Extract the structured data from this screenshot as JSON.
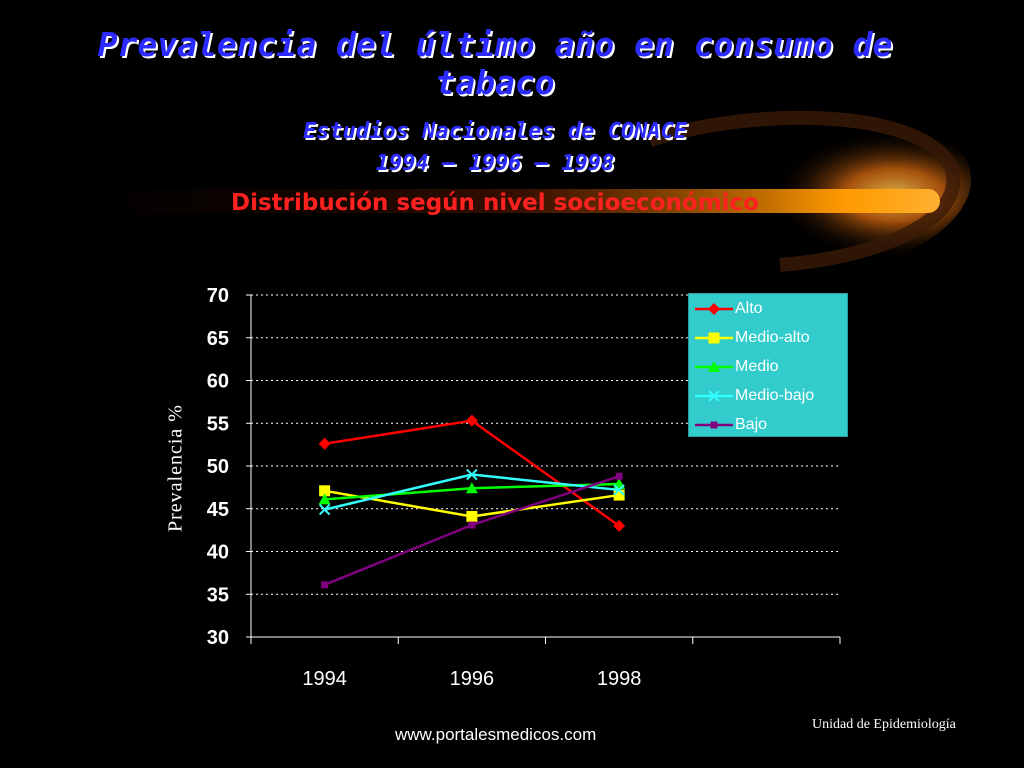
{
  "slide": {
    "title_line1": "Prevalencia del último año en consumo de",
    "title_line2": "tabaco",
    "subtitle1": "Estudios Nacionales de CONACE",
    "subtitle2": "1994 – 1996 – 1998",
    "subtitle3": "Distribución según nivel socioeconómico",
    "footer_url": "www.portalesmedicos.com",
    "footer_unit": "Unidad de Epidemiología"
  },
  "chart_data": {
    "type": "line",
    "title": "",
    "xlabel": "",
    "ylabel": "Prevalencia  %",
    "categories": [
      "1994",
      "1996",
      "1998"
    ],
    "ylim": [
      30,
      70
    ],
    "yticks": [
      30,
      35,
      40,
      45,
      50,
      55,
      60,
      65,
      70
    ],
    "grid": true,
    "legend_position": "top-right",
    "series": [
      {
        "name": "Alto",
        "values": [
          52.6,
          55.3,
          43.0
        ],
        "color": "#ff0000",
        "marker": "diamond"
      },
      {
        "name": "Medio-alto",
        "values": [
          47.1,
          44.1,
          46.6
        ],
        "color": "#ffff00",
        "marker": "square"
      },
      {
        "name": "Medio",
        "values": [
          46.1,
          47.4,
          47.9
        ],
        "color": "#00ff00",
        "marker": "triangle"
      },
      {
        "name": "Medio-bajo",
        "values": [
          44.9,
          49.0,
          47.2
        ],
        "color": "#33ffff",
        "marker": "x"
      },
      {
        "name": "Bajo",
        "values": [
          36.1,
          43.1,
          48.8
        ],
        "color": "#800080",
        "marker": "smallsquare"
      }
    ]
  }
}
